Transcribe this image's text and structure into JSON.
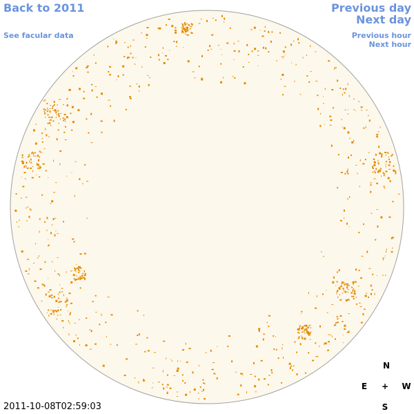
{
  "navigation": {
    "back": "Back to 2011",
    "previous_day": "Previous day",
    "next_day": "Next day",
    "facular_data": "See facular data",
    "previous_hour": "Previous hour",
    "next_hour": "Next hour"
  },
  "timestamp": "2011-10-08T02:59:03",
  "compass": {
    "north": "N",
    "east": "E",
    "center": "+",
    "west": "W",
    "south": "S"
  }
}
